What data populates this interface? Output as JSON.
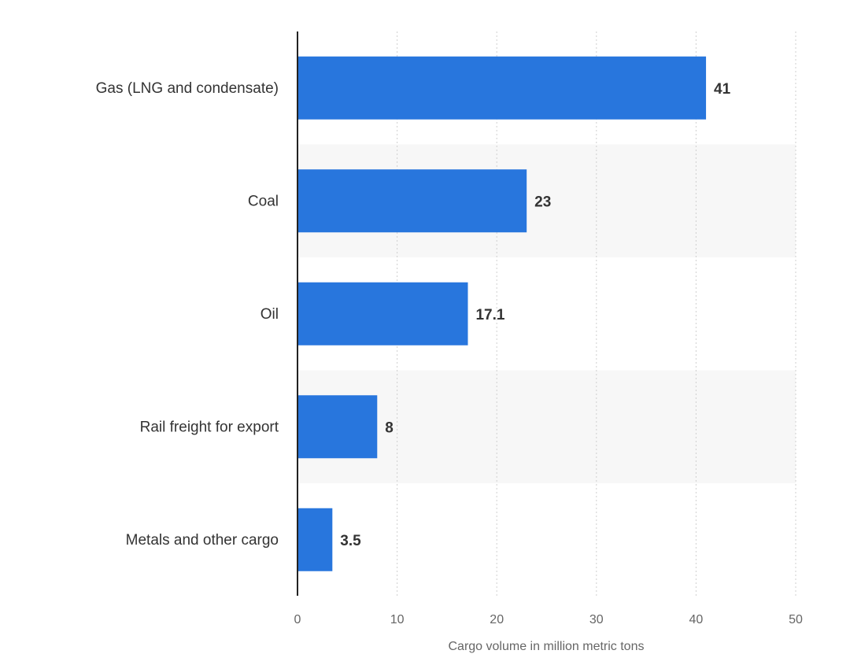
{
  "chart_data": {
    "type": "bar",
    "orientation": "horizontal",
    "categories": [
      "Gas (LNG and condensate)",
      "Coal",
      "Oil",
      "Rail freight for export",
      "Metals and other cargo"
    ],
    "values": [
      41,
      23,
      17.1,
      8,
      3.5
    ],
    "value_labels": [
      "41",
      "23",
      "17.1",
      "8",
      "3.5"
    ],
    "xlabel": "Cargo volume in million metric tons",
    "ylabel": "",
    "xlim": [
      0,
      50
    ],
    "x_ticks": [
      "0",
      "10",
      "20",
      "30",
      "40",
      "50"
    ],
    "grid": true,
    "bar_color": "#2876dd"
  }
}
